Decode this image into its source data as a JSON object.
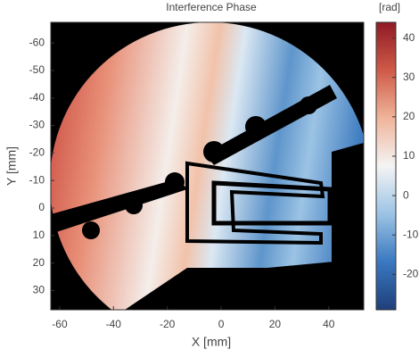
{
  "chart_data": {
    "type": "heatmap",
    "title": "Interference Phase",
    "colorbar_label": "[rad]",
    "xlabel": "X [mm]",
    "ylabel": "Y [mm]",
    "xlim": [
      -63.3,
      53
    ],
    "xticks": [
      -60,
      -40,
      -20,
      0,
      20,
      40
    ],
    "ylim": [
      -67.5,
      37
    ],
    "yticks": [
      -60,
      -50,
      -40,
      -30,
      -20,
      -10,
      0,
      10,
      20,
      30
    ],
    "y_reversed": true,
    "clim": [
      -29,
      44
    ],
    "cticks": [
      -20,
      -10,
      0,
      10,
      20,
      30,
      40
    ],
    "colormap": [
      "#1f3f7a",
      "#3a78c0",
      "#9cc3e4",
      "#f4f4f4",
      "#f0b49a",
      "#cf5a48",
      "#8e1a26"
    ]
  }
}
